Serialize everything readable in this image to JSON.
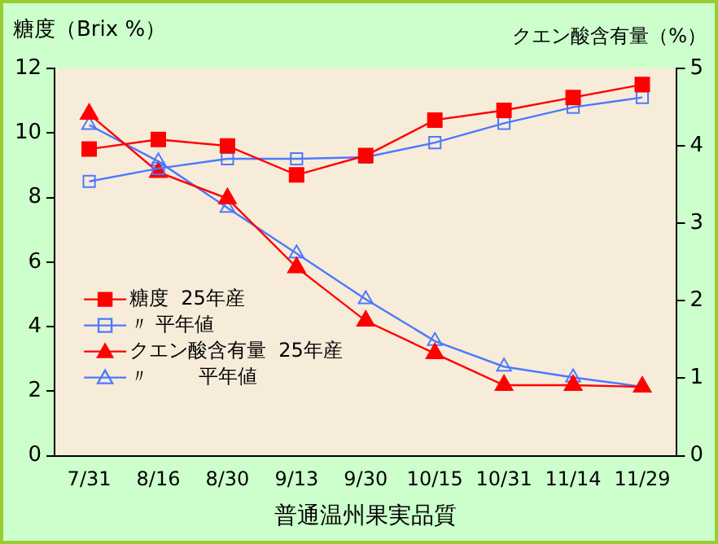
{
  "chart_data": {
    "type": "line",
    "xlabel": "普通温州果実品質",
    "ylabel": "糖度（Brix %）",
    "y2label": "クエン酸含有量（%）",
    "categories": [
      "7/31",
      "8/16",
      "8/30",
      "9/13",
      "9/30",
      "10/15",
      "10/31",
      "11/14",
      "11/29"
    ],
    "series": [
      {
        "name": "糖度  25年産",
        "color": "#ff0000",
        "marker": "square",
        "values": [
          9.5,
          9.8,
          9.6,
          8.7,
          9.3,
          10.4,
          10.7,
          11.1,
          11.5
        ]
      },
      {
        "name": "〃 平年値",
        "color": "#4d79ff",
        "marker": "square",
        "values": [
          8.5,
          8.9,
          9.2,
          9.2,
          9.25,
          9.7,
          10.3,
          10.8,
          11.1
        ]
      },
      {
        "name": "クエン酸含有量  25年産",
        "color": "#ff0000",
        "marker": "triangle",
        "axis": "y2",
        "values": [
          4.41,
          3.66,
          3.32,
          2.43,
          1.74,
          1.32,
          0.91,
          0.91,
          0.89
        ]
      },
      {
        "name": "〃        平年値",
        "color": "#4d79ff",
        "marker": "triangle",
        "axis": "y2",
        "values": [
          4.27,
          3.8,
          3.2,
          2.61,
          2.02,
          1.48,
          1.15,
          1.01,
          0.89
        ]
      }
    ],
    "ylim": [
      0,
      12
    ],
    "yticks": [
      0,
      2,
      4,
      6,
      8,
      10,
      12
    ],
    "y2lim": [
      0,
      5
    ],
    "y2ticks": [
      0,
      1,
      2,
      3,
      4,
      5
    ],
    "grid": false,
    "legend": "bottom left"
  }
}
